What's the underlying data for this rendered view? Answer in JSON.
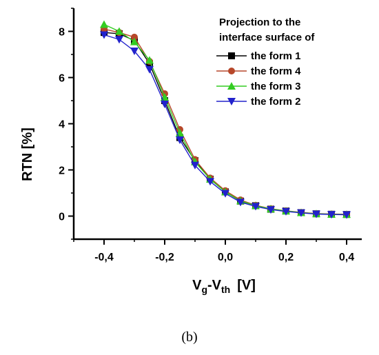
{
  "caption": "(b)",
  "chart_data": {
    "type": "line",
    "title": "",
    "xlabel": "Vg-Vth [V]",
    "xlabel_main": "V",
    "xlabel_sub1": "g",
    "xlabel_mid": "-V",
    "xlabel_sub2": "th",
    "xlabel_unit": "[V]",
    "ylabel": "RTN [%]",
    "xlim": [
      -0.5,
      0.45
    ],
    "ylim": [
      -1,
      9
    ],
    "x_ticks": [
      -0.4,
      -0.2,
      0.0,
      0.2,
      0.4
    ],
    "x_tick_labels": [
      "-0,4",
      "-0,2",
      "0,0",
      "0,2",
      "0,4"
    ],
    "y_ticks": [
      0,
      2,
      4,
      6,
      8
    ],
    "y_tick_labels": [
      "0",
      "2",
      "4",
      "6",
      "8"
    ],
    "grid": false,
    "legend": {
      "title_line1": "Projection to the",
      "title_line2": "interface surface of",
      "placement": "top-right"
    },
    "x": [
      -0.4,
      -0.35,
      -0.3,
      -0.25,
      -0.2,
      -0.15,
      -0.1,
      -0.05,
      0.0,
      0.05,
      0.1,
      0.15,
      0.2,
      0.25,
      0.3,
      0.35,
      0.4
    ],
    "series": [
      {
        "name": "the form 1",
        "color": "#000000",
        "marker": "square",
        "values": [
          7.95,
          7.9,
          7.6,
          6.6,
          5.0,
          3.4,
          2.4,
          1.6,
          1.05,
          0.65,
          0.45,
          0.3,
          0.22,
          0.15,
          0.1,
          0.08,
          0.07
        ]
      },
      {
        "name": "the form 4",
        "color": "#b7472a",
        "marker": "circle",
        "values": [
          8.1,
          7.95,
          7.75,
          6.7,
          5.3,
          3.75,
          2.45,
          1.65,
          1.1,
          0.7,
          0.47,
          0.32,
          0.23,
          0.16,
          0.11,
          0.09,
          0.08
        ]
      },
      {
        "name": "the form 3",
        "color": "#33cc22",
        "marker": "triangle-up",
        "values": [
          8.3,
          8.0,
          7.55,
          6.75,
          5.15,
          3.6,
          2.35,
          1.6,
          1.05,
          0.66,
          0.45,
          0.31,
          0.22,
          0.15,
          0.1,
          0.08,
          0.07
        ]
      },
      {
        "name": "the form 2",
        "color": "#2222cc",
        "marker": "triangle-down",
        "values": [
          7.85,
          7.65,
          7.15,
          6.35,
          4.85,
          3.3,
          2.2,
          1.5,
          0.98,
          0.6,
          0.42,
          0.28,
          0.2,
          0.14,
          0.09,
          0.07,
          0.06
        ]
      }
    ]
  }
}
